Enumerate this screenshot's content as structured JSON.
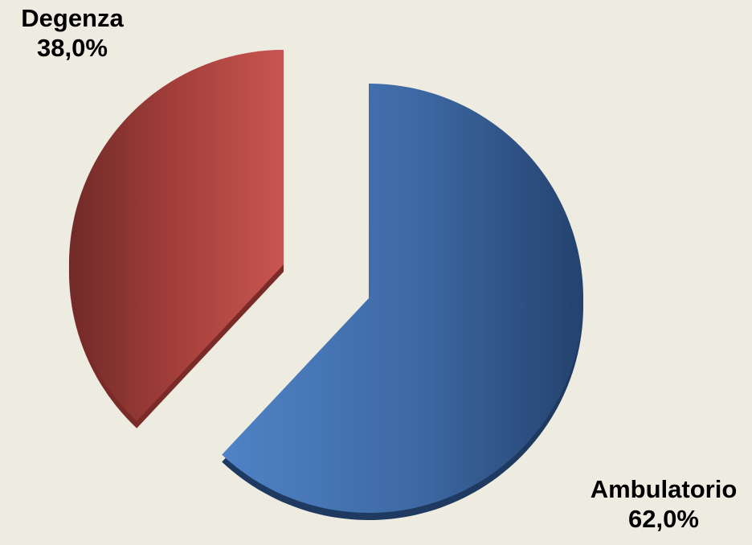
{
  "chart_data": {
    "type": "pie",
    "title": "",
    "slices": [
      {
        "name": "Ambulatorio",
        "value": 62.0,
        "label": "62,0%",
        "color": "#4A78B8"
      },
      {
        "name": "Degenza",
        "value": 38.0,
        "label": "38,0%",
        "color": "#C0504D"
      }
    ],
    "legend": "none",
    "style": "3d-exploded"
  }
}
